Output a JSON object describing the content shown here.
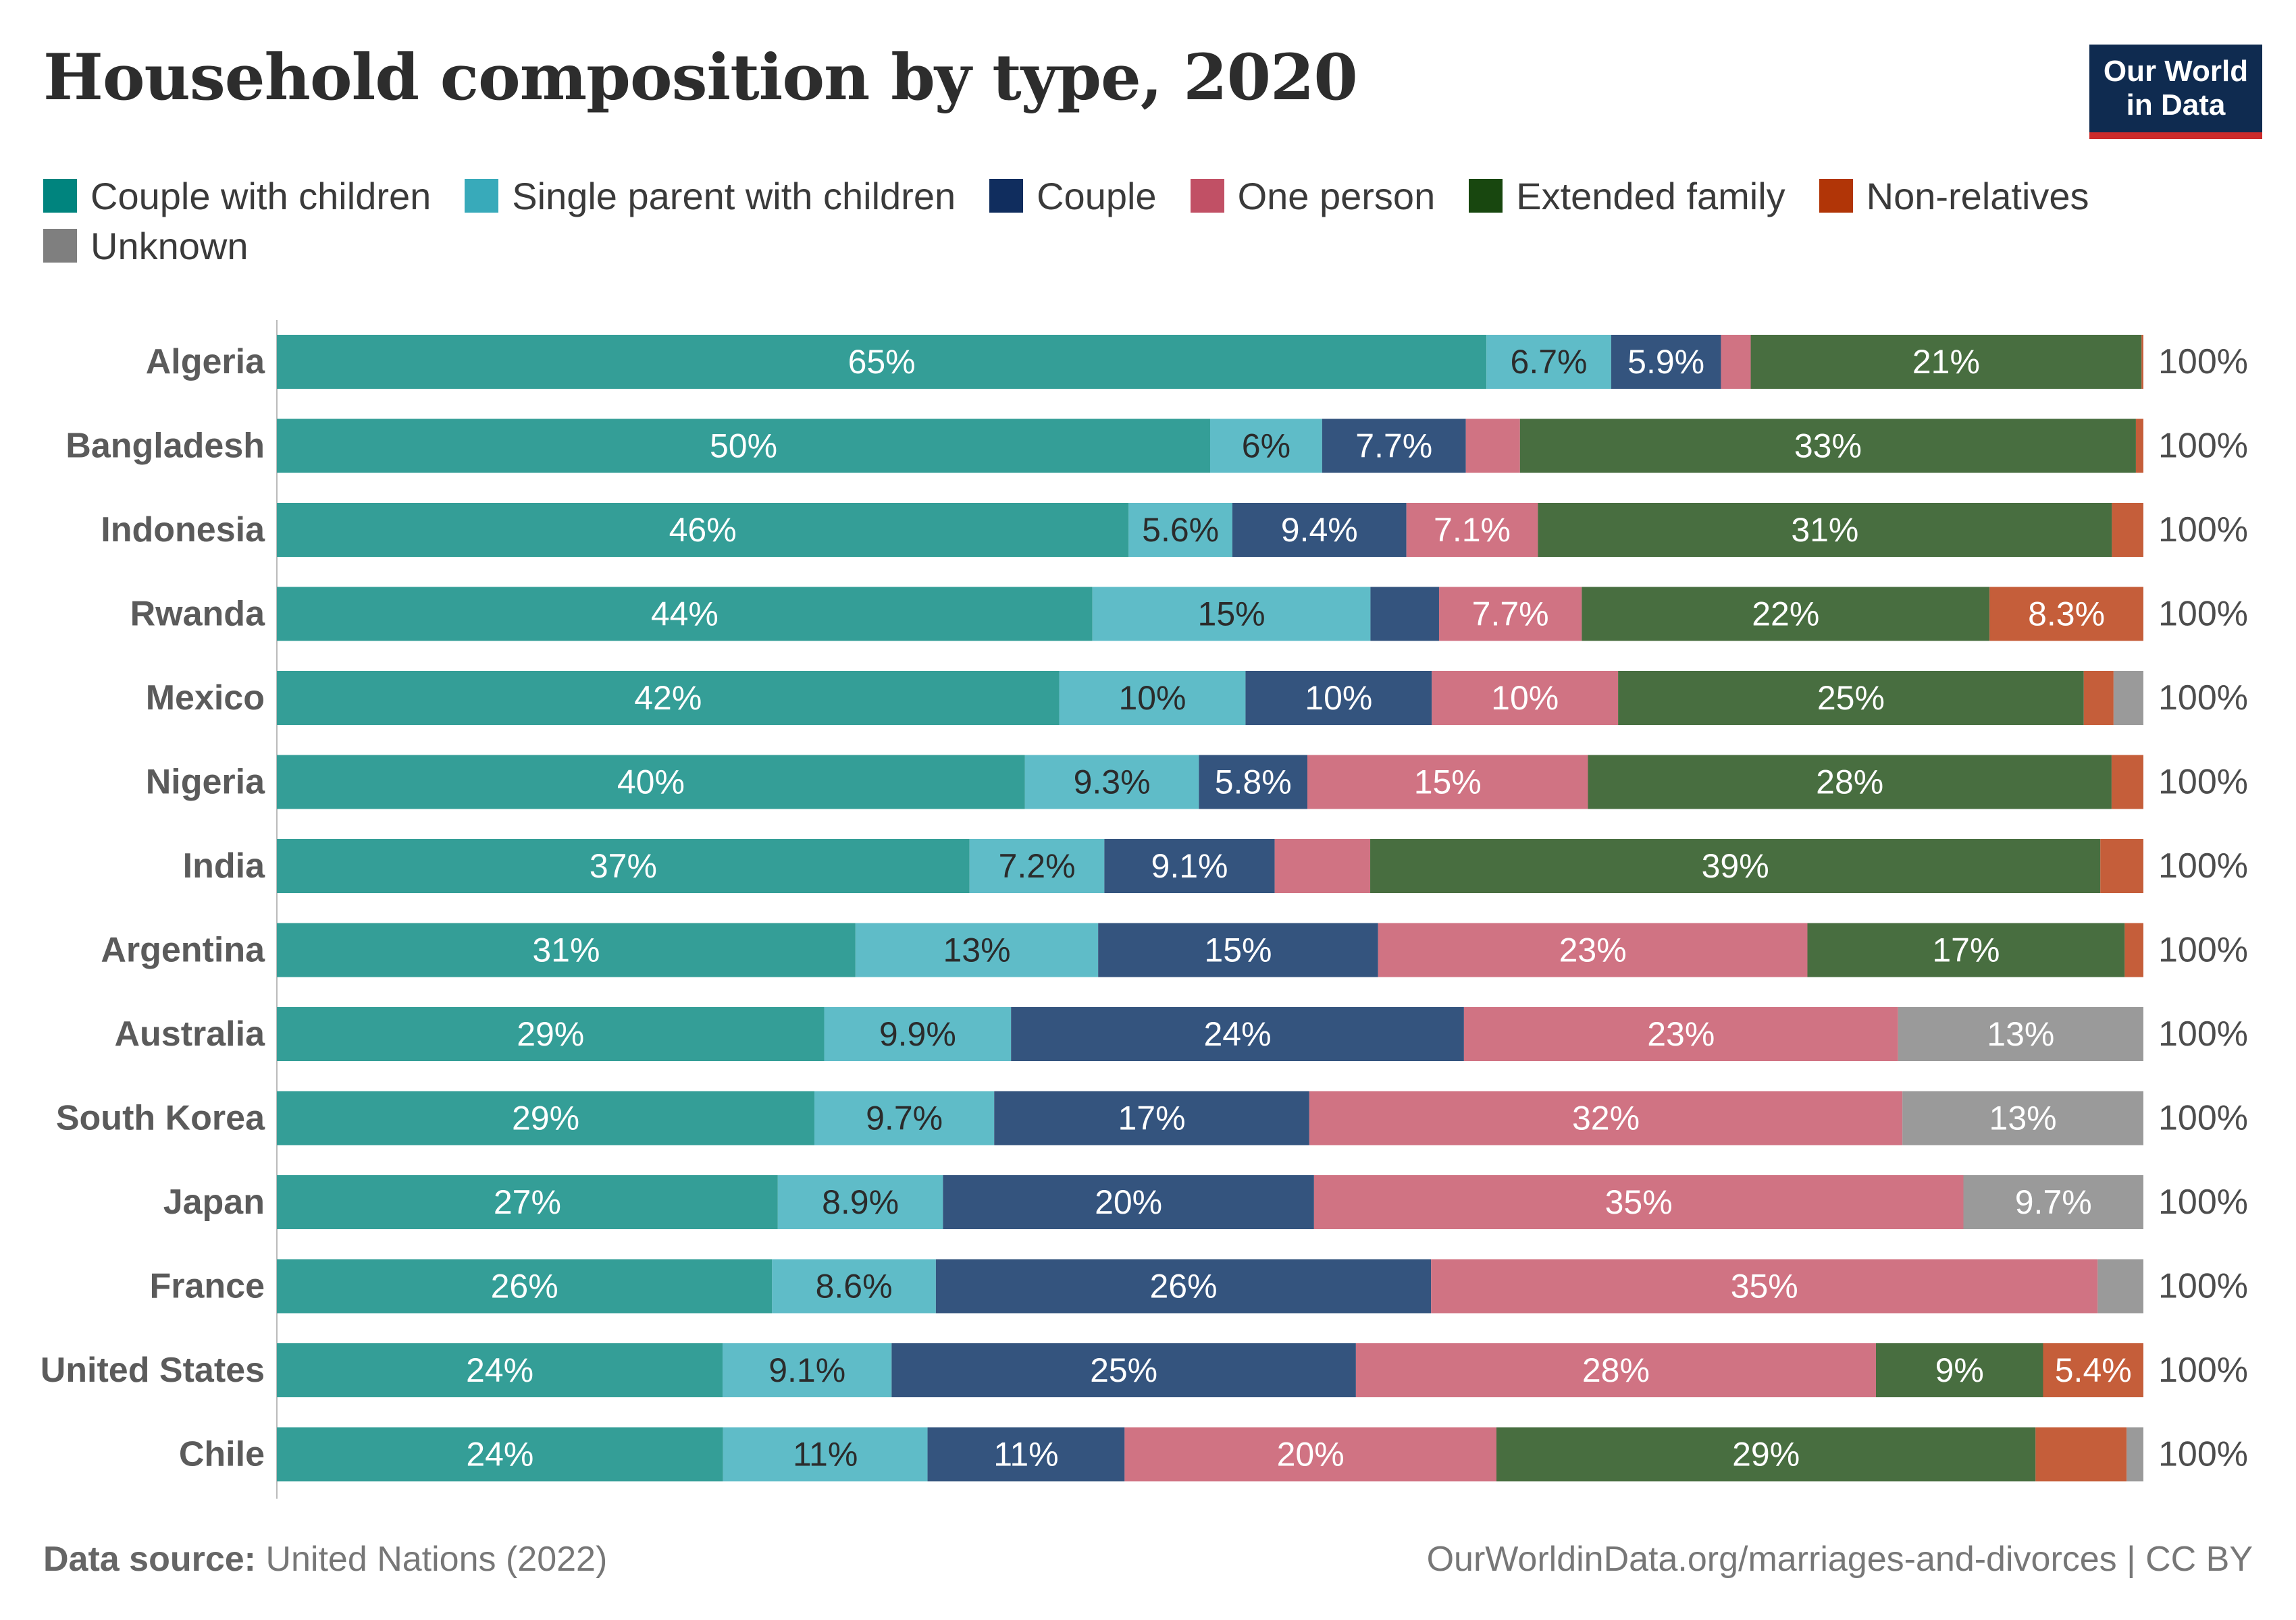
{
  "title": "Household composition by type, 2020",
  "logo": {
    "line1": "Our World",
    "line2": "in Data"
  },
  "source_label": "Data source:",
  "source_text": "United Nations (2022)",
  "footer_right": "OurWorldinData.org/marriages-and-divorces | CC BY",
  "chart_data": {
    "type": "bar",
    "orientation": "horizontal",
    "stacked": true,
    "unit": "%",
    "categories": [
      "Algeria",
      "Bangladesh",
      "Indonesia",
      "Rwanda",
      "Mexico",
      "Nigeria",
      "India",
      "Argentina",
      "Australia",
      "South Korea",
      "Japan",
      "France",
      "United States",
      "Chile"
    ],
    "totals": [
      "100%",
      "100%",
      "100%",
      "100%",
      "100%",
      "100%",
      "100%",
      "100%",
      "100%",
      "100%",
      "100%",
      "100%",
      "100%",
      "100%"
    ],
    "series": [
      {
        "name": "Couple with children",
        "legend_color": "#00847e",
        "bar_color": "#349e97",
        "values": [
          65,
          50,
          46,
          44,
          42,
          40,
          37,
          31,
          29,
          29,
          27,
          26,
          24,
          24
        ],
        "labels": [
          "65%",
          "50%",
          "46%",
          "44%",
          "42%",
          "40%",
          "37%",
          "31%",
          "29%",
          "29%",
          "27%",
          "26%",
          "24%",
          "24%"
        ]
      },
      {
        "name": "Single parent with children",
        "legend_color": "#38aaba",
        "bar_color": "#5fbcc8",
        "values": [
          6.7,
          6,
          5.6,
          15,
          10,
          9.3,
          7.2,
          13,
          9.9,
          9.7,
          8.9,
          8.6,
          9.1,
          11
        ],
        "labels": [
          "6.7%",
          "6%",
          "5.6%",
          "15%",
          "10%",
          "9.3%",
          "7.2%",
          "13%",
          "9.9%",
          "9.7%",
          "8.9%",
          "8.6%",
          "9.1%",
          "11%"
        ]
      },
      {
        "name": "Couple",
        "legend_color": "#102d5e",
        "bar_color": "#34547e",
        "values": [
          5.9,
          7.7,
          9.4,
          3.7,
          10,
          5.8,
          9.1,
          15,
          24,
          17,
          20,
          26,
          25,
          10.6
        ],
        "labels": [
          "5.9%",
          "7.7%",
          "9.4%",
          "",
          "10%",
          "5.8%",
          "9.1%",
          "15%",
          "24%",
          "17%",
          "20%",
          "26%",
          "25%",
          "11%"
        ]
      },
      {
        "name": "One person",
        "legend_color": "#c15065",
        "bar_color": "#d07383",
        "values": [
          1.6,
          2.9,
          7.1,
          7.7,
          10,
          15,
          5.1,
          23,
          23,
          32,
          35,
          35,
          28,
          20
        ],
        "labels": [
          "",
          "",
          "7.1%",
          "7.7%",
          "10%",
          "15%",
          "",
          "23%",
          "23%",
          "32%",
          "35%",
          "35%",
          "28%",
          "20%"
        ]
      },
      {
        "name": "Extended family",
        "legend_color": "#18470f",
        "bar_color": "#486e40",
        "values": [
          21,
          33,
          31,
          22,
          25,
          28,
          39,
          17,
          0,
          0,
          0,
          0,
          9,
          29
        ],
        "labels": [
          "21%",
          "33%",
          "31%",
          "22%",
          "25%",
          "28%",
          "39%",
          "17%",
          "",
          "",
          "",
          "",
          "9%",
          "29%"
        ]
      },
      {
        "name": "Non-relatives",
        "legend_color": "#b13507",
        "bar_color": "#c55e3a",
        "values": [
          0.1,
          0.4,
          1.7,
          8.3,
          1.6,
          1.7,
          2.3,
          1.0,
          0,
          0,
          0,
          0,
          5.4,
          4.9
        ],
        "labels": [
          "",
          "",
          "",
          "8.3%",
          "",
          "",
          "",
          "",
          "",
          "",
          "",
          "",
          "5.4%",
          ""
        ]
      },
      {
        "name": "Unknown",
        "legend_color": "#7f7f7f",
        "bar_color": "#9a9a9a",
        "values": [
          0,
          0,
          0,
          0,
          1.6,
          0,
          0,
          0,
          13,
          13,
          9.7,
          2.4,
          0,
          0.9
        ],
        "labels": [
          "",
          "",
          "",
          "",
          "",
          "",
          "",
          "",
          "13%",
          "13%",
          "9.7%",
          "",
          "",
          ""
        ]
      }
    ],
    "xlim": [
      0,
      100
    ],
    "grid": false,
    "legend_position": "top"
  }
}
